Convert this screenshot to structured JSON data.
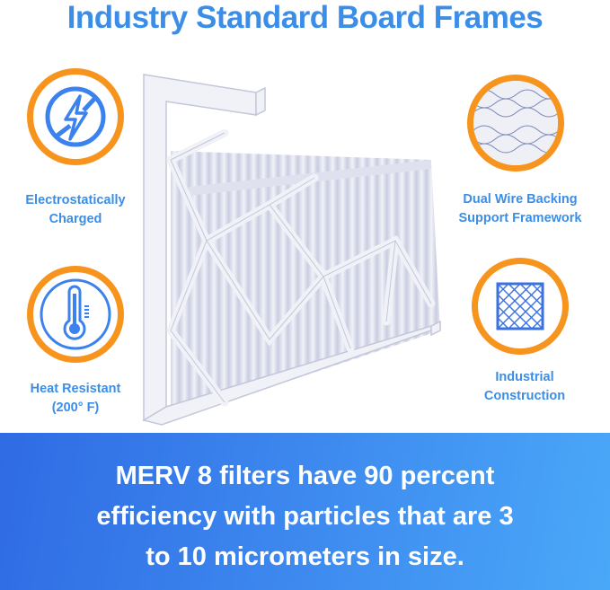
{
  "title": "Industry Standard Board Frames",
  "features": [
    {
      "icon": "no-static-lightning-icon",
      "label_line1": "Electrostatically",
      "label_line2": "Charged"
    },
    {
      "icon": "thermometer-icon",
      "label_line1": "Heat Resistant",
      "label_line2": "(200° F)"
    },
    {
      "icon": "wire-mesh-icon",
      "label_line1": "Dual Wire Backing",
      "label_line2": "Support Framework"
    },
    {
      "icon": "grid-frame-icon",
      "label_line1": "Industrial",
      "label_line2": "Construction"
    }
  ],
  "banner": {
    "line1": "MERV 8 filters have 90 percent",
    "line2": "efficiency with particles that are 3",
    "line3": "to 10 micrometers in size."
  },
  "colors": {
    "accent_blue": "#3b8ee8",
    "ring_orange": "#f7941d",
    "banner_start": "#2f6be4",
    "banner_end": "#4aa8f8"
  }
}
